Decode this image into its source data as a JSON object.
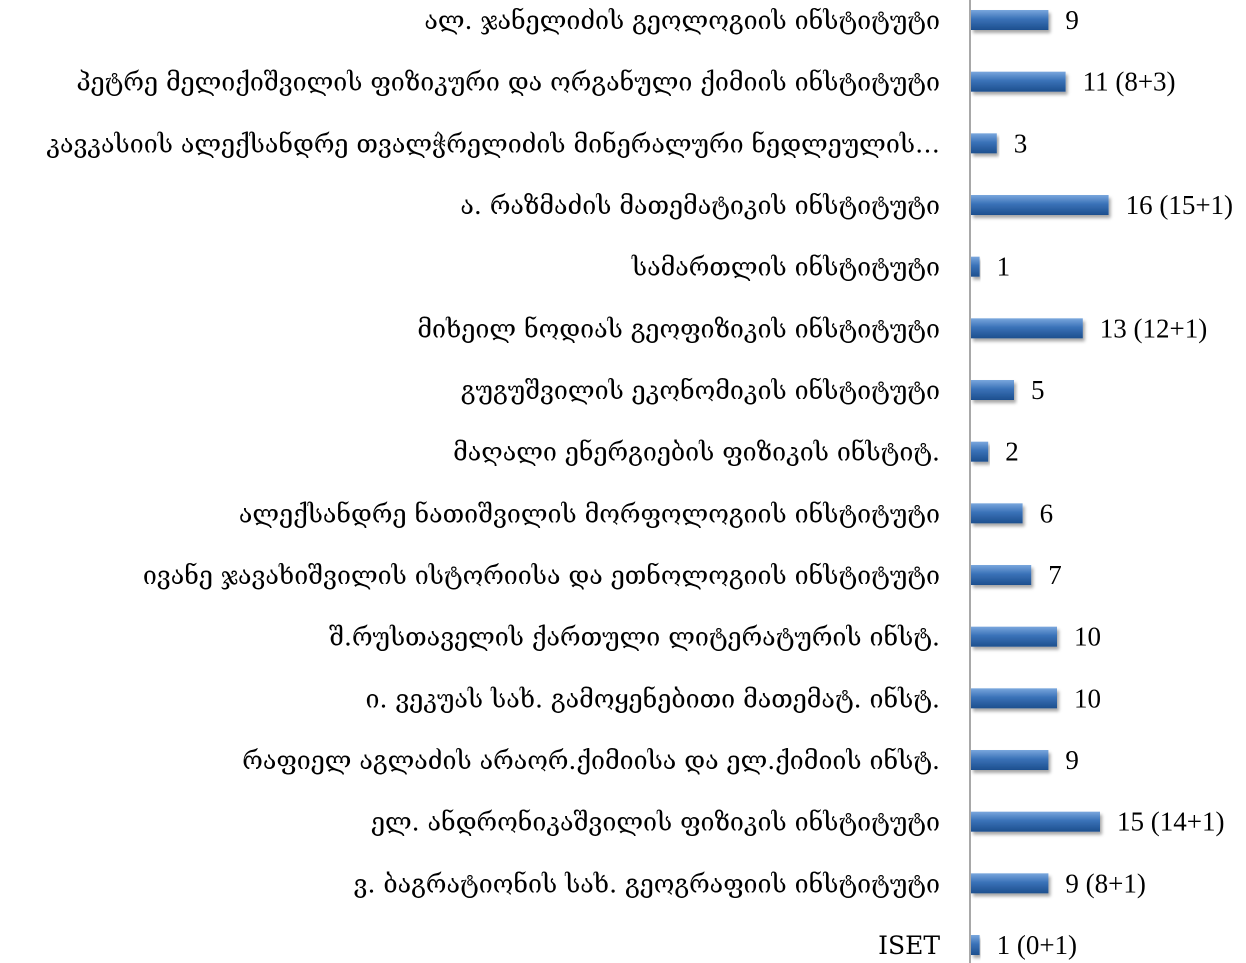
{
  "chart_data": {
    "type": "bar",
    "orientation": "horizontal",
    "title": "",
    "xlabel": "",
    "ylabel": "",
    "categories": [
      "ალ. ჯანელიძის გეოლოგიის ინსტიტუტი",
      "პეტრე მელიქიშვილის ფიზიკური და ორგანული ქიმიის ინსტიტუტი",
      "კავკასიის ალექსანდრე თვალჭრელიძის მინერალური ნედლეულის…",
      "ა. რაზმაძის მათემატიკის ინსტიტუტი",
      "სამართლის ინსტიტუტი",
      "მიხეილ ნოდიას გეოფიზიკის ინსტიტუტი",
      "გუგუშვილის ეკონომიკის ინსტიტუტი",
      "მაღალი ენერგიების ფიზიკის ინსტიტ.",
      "ალექსანდრე ნათიშვილის მორფოლოგიის ინსტიტუტი",
      "ივანე ჯავახიშვილის ისტორიისა და ეთნოლოგიის ინსტიტუტი",
      "შ.რუსთაველის ქართული ლიტერატურის ინსტ.",
      "ი. ვეკუას სახ. გამოყენებითი მათემატ. ინსტ.",
      "რაფიელ აგლაძის არაორ.ქიმიისა და ელ.ქიმიის ინსტ.",
      "ელ. ანდრონიკაშვილის ფიზიკის ინსტიტუტი",
      "ვ. ბაგრატიონის სახ. გეოგრაფიის ინსტიტუტი",
      "ISET"
    ],
    "values": [
      9,
      11,
      3,
      16,
      1,
      13,
      5,
      2,
      6,
      7,
      10,
      10,
      9,
      15,
      9,
      1
    ],
    "data_labels": [
      "9",
      "11 (8+3)",
      "3",
      "16 (15+1)",
      "1",
      "13 (12+1)",
      "5",
      "2",
      "6",
      "7",
      "10",
      "10",
      "9",
      "15 (14+1)",
      "9 (8+1)",
      "1 (0+1)"
    ],
    "grid": false,
    "legend": "none",
    "bar_color": "#3a72b8",
    "bar_color_light": "#7aa7dd",
    "bar_color_dark": "#1d4f8e",
    "axis_color": "#8c8c8c"
  }
}
